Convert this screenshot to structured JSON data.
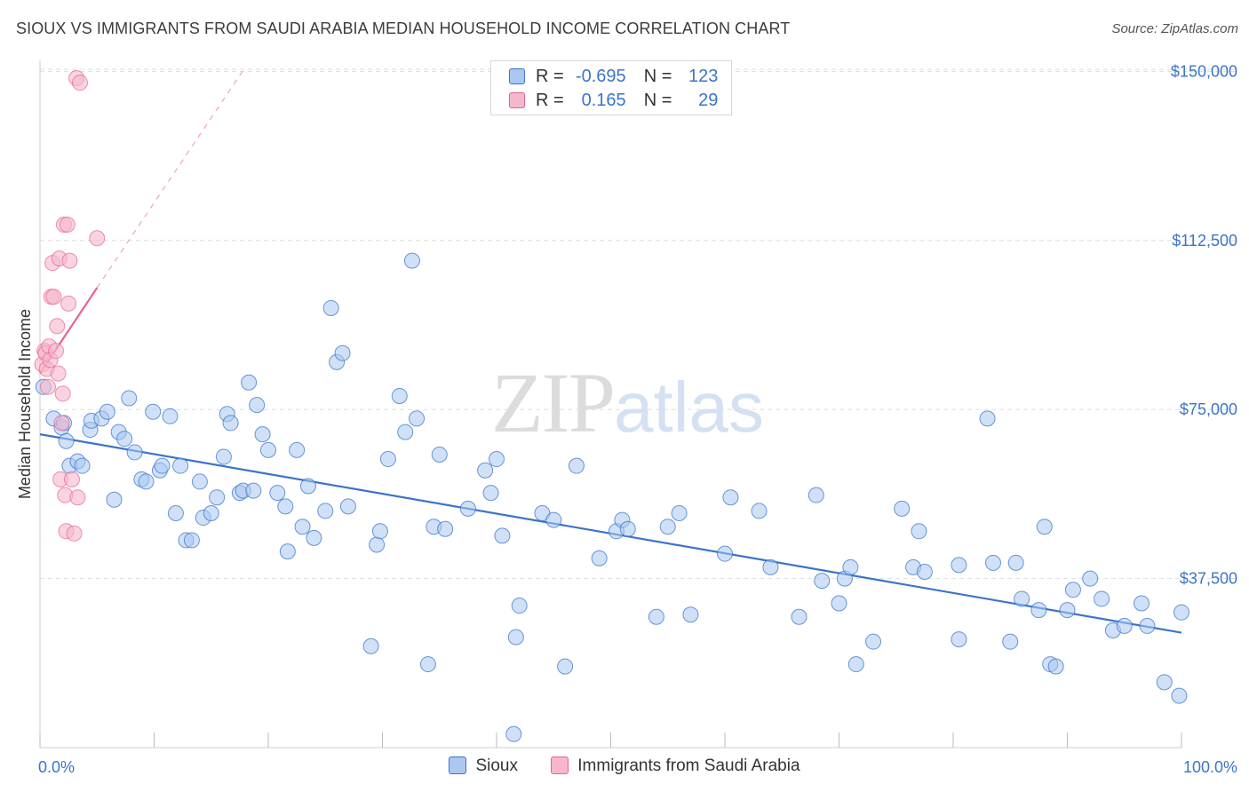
{
  "title": "SIOUX VS IMMIGRANTS FROM SAUDI ARABIA MEDIAN HOUSEHOLD INCOME CORRELATION CHART",
  "source": "Source: ZipAtlas.com",
  "watermark": {
    "zip": "ZIP",
    "atlas": "atlas"
  },
  "colors": {
    "blue": "#3b74c9",
    "blue_fill": "#aac8f0",
    "pink": "#e8628f",
    "pink_fill": "#f5b7cb",
    "grid": "#dedede"
  },
  "legend_top": {
    "rows": [
      {
        "r_label": "R =",
        "r_value": "-0.695",
        "n_label": "N =",
        "n_value": "123"
      },
      {
        "r_label": "R =",
        "r_value": "0.165",
        "n_label": "N =",
        "n_value": "29"
      }
    ]
  },
  "chart_data": {
    "type": "scatter",
    "title": "SIOUX VS IMMIGRANTS FROM SAUDI ARABIA MEDIAN HOUSEHOLD INCOME CORRELATION CHART",
    "xlabel": "",
    "ylabel": "Median Household Income",
    "x_tick_labels": [
      "0.0%",
      "100.0%"
    ],
    "y_tick_labels": [
      "$37,500",
      "$75,000",
      "$112,500",
      "$150,000"
    ],
    "y_ticks": [
      37500,
      75000,
      112500,
      150000
    ],
    "xlim": [
      0,
      100
    ],
    "ylim": [
      0,
      155000
    ],
    "grid": true,
    "legend_placement": "bottom",
    "series": [
      {
        "name": "Sioux",
        "color": "#3b74c9",
        "points": [
          [
            0.3,
            80000
          ],
          [
            1.2,
            73000
          ],
          [
            1.9,
            71000
          ],
          [
            2.1,
            72000
          ],
          [
            2.3,
            68000
          ],
          [
            2.6,
            62500
          ],
          [
            3.3,
            63500
          ],
          [
            3.7,
            62500
          ],
          [
            4.4,
            70500
          ],
          [
            4.5,
            72500
          ],
          [
            5.4,
            73000
          ],
          [
            5.9,
            74500
          ],
          [
            6.5,
            55000
          ],
          [
            6.9,
            70000
          ],
          [
            7.4,
            68500
          ],
          [
            7.8,
            77500
          ],
          [
            8.3,
            65500
          ],
          [
            8.9,
            59500
          ],
          [
            9.3,
            59000
          ],
          [
            9.9,
            74500
          ],
          [
            10.5,
            61500
          ],
          [
            10.7,
            62500
          ],
          [
            11.4,
            73500
          ],
          [
            11.9,
            52000
          ],
          [
            12.3,
            62500
          ],
          [
            12.8,
            46000
          ],
          [
            13.3,
            46000
          ],
          [
            14.0,
            59000
          ],
          [
            14.3,
            51000
          ],
          [
            15.0,
            52000
          ],
          [
            15.5,
            55500
          ],
          [
            16.1,
            64500
          ],
          [
            16.4,
            74000
          ],
          [
            16.7,
            72000
          ],
          [
            17.5,
            56500
          ],
          [
            17.8,
            57000
          ],
          [
            18.3,
            81000
          ],
          [
            18.7,
            57000
          ],
          [
            19.0,
            76000
          ],
          [
            19.5,
            69500
          ],
          [
            20.0,
            66000
          ],
          [
            20.8,
            56500
          ],
          [
            21.5,
            53500
          ],
          [
            21.7,
            43500
          ],
          [
            22.5,
            66000
          ],
          [
            23.0,
            49000
          ],
          [
            23.5,
            58000
          ],
          [
            24.0,
            46500
          ],
          [
            25.0,
            52500
          ],
          [
            25.5,
            97500
          ],
          [
            26.0,
            85500
          ],
          [
            26.5,
            87500
          ],
          [
            27.0,
            53500
          ],
          [
            29.0,
            22500
          ],
          [
            29.5,
            45000
          ],
          [
            29.8,
            48000
          ],
          [
            30.5,
            64000
          ],
          [
            31.5,
            78000
          ],
          [
            32.0,
            70000
          ],
          [
            32.6,
            108000
          ],
          [
            33.0,
            73000
          ],
          [
            34.0,
            18500
          ],
          [
            34.5,
            49000
          ],
          [
            35.0,
            65000
          ],
          [
            35.5,
            48500
          ],
          [
            37.5,
            53000
          ],
          [
            39.0,
            61500
          ],
          [
            39.5,
            56500
          ],
          [
            40.0,
            64000
          ],
          [
            40.5,
            47000
          ],
          [
            41.5,
            3000
          ],
          [
            41.7,
            24500
          ],
          [
            42.0,
            31500
          ],
          [
            44.0,
            52000
          ],
          [
            45.0,
            50500
          ],
          [
            46.0,
            18000
          ],
          [
            47.0,
            62500
          ],
          [
            49.0,
            42000
          ],
          [
            50.5,
            48000
          ],
          [
            51.0,
            50500
          ],
          [
            51.5,
            48500
          ],
          [
            54.0,
            29000
          ],
          [
            55.0,
            49000
          ],
          [
            56.0,
            52000
          ],
          [
            57.0,
            29500
          ],
          [
            60.0,
            43000
          ],
          [
            60.5,
            55500
          ],
          [
            63.0,
            52500
          ],
          [
            64.0,
            40000
          ],
          [
            66.5,
            29000
          ],
          [
            68.0,
            56000
          ],
          [
            68.5,
            37000
          ],
          [
            70.0,
            32000
          ],
          [
            70.5,
            37500
          ],
          [
            71.0,
            40000
          ],
          [
            71.5,
            18500
          ],
          [
            73.0,
            23500
          ],
          [
            75.5,
            53000
          ],
          [
            76.5,
            40000
          ],
          [
            77.0,
            48000
          ],
          [
            77.5,
            39000
          ],
          [
            80.5,
            24000
          ],
          [
            80.5,
            40500
          ],
          [
            83.0,
            73000
          ],
          [
            83.5,
            41000
          ],
          [
            85.0,
            23500
          ],
          [
            85.5,
            41000
          ],
          [
            86.0,
            33000
          ],
          [
            87.5,
            30500
          ],
          [
            88.0,
            49000
          ],
          [
            88.5,
            18500
          ],
          [
            89.0,
            18000
          ],
          [
            90.0,
            30500
          ],
          [
            90.5,
            35000
          ],
          [
            92.0,
            37500
          ],
          [
            93.0,
            33000
          ],
          [
            94.0,
            26000
          ],
          [
            95.0,
            27000
          ],
          [
            96.5,
            32000
          ],
          [
            97.0,
            27000
          ],
          [
            98.5,
            14500
          ],
          [
            99.8,
            11500
          ],
          [
            100.0,
            30000
          ]
        ],
        "trend": {
          "x": [
            0,
            100
          ],
          "y": [
            69500,
            25500
          ]
        }
      },
      {
        "name": "Immigrants from Saudi Arabia",
        "color": "#e8628f",
        "points": [
          [
            0.2,
            85000
          ],
          [
            0.4,
            88000
          ],
          [
            0.5,
            87500
          ],
          [
            0.6,
            84000
          ],
          [
            0.7,
            80000
          ],
          [
            0.8,
            89000
          ],
          [
            0.9,
            86000
          ],
          [
            1.0,
            100000
          ],
          [
            1.1,
            107500
          ],
          [
            1.2,
            100000
          ],
          [
            1.4,
            88000
          ],
          [
            1.5,
            93500
          ],
          [
            1.6,
            83000
          ],
          [
            1.7,
            108500
          ],
          [
            1.8,
            59500
          ],
          [
            1.9,
            72000
          ],
          [
            2.0,
            78500
          ],
          [
            2.1,
            116000
          ],
          [
            2.2,
            56000
          ],
          [
            2.3,
            48000
          ],
          [
            2.4,
            116000
          ],
          [
            2.5,
            98500
          ],
          [
            2.6,
            108000
          ],
          [
            2.8,
            59500
          ],
          [
            3.0,
            47500
          ],
          [
            3.2,
            148500
          ],
          [
            3.3,
            55500
          ],
          [
            3.5,
            147500
          ],
          [
            5.0,
            113000
          ]
        ],
        "trend_solid": {
          "x": [
            0,
            5.0
          ],
          "y": [
            83000,
            102000
          ]
        },
        "trend_dashed": {
          "x": [
            5.0,
            18.0
          ],
          "y": [
            102000,
            151000
          ]
        }
      }
    ]
  }
}
